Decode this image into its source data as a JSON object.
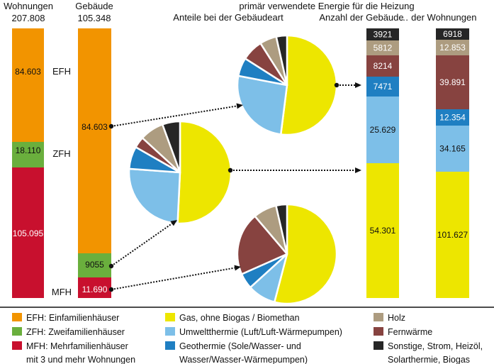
{
  "colors": {
    "EFH": "#F29400",
    "ZFH": "#6AAF3D",
    "MFH": "#C8102E",
    "gas": "#EDE600",
    "umwelt": "#7DBFE8",
    "geo": "#1F7FC2",
    "fern": "#874340",
    "holz": "#AD9C80",
    "sonst": "#262626"
  },
  "headers": {
    "wohnungen": "Wohnungen",
    "wohnungen_total": "207.808",
    "gebaeude": "Gebäude",
    "gebaeude_total": "105.348",
    "energy_title": "primär verwendete Energie für die Heizung",
    "pie_title": "Anteile bei der Gebäudeart",
    "anzahl_gebaeude": "Anzahl der Gebäude",
    "anzahl_wohnungen": "… der Wohnungen"
  },
  "type_labels": {
    "EFH": "EFH",
    "ZFH": "ZFH",
    "MFH": "MFH"
  },
  "chart_data": [
    {
      "type": "bar",
      "title": "Wohnungen 207.808",
      "stacked": true,
      "series": [
        {
          "key": "EFH",
          "label": "84.603",
          "value": 84603
        },
        {
          "key": "ZFH",
          "label": "18.110",
          "value": 18110
        },
        {
          "key": "MFH",
          "label": "105.095",
          "value": 105095
        }
      ]
    },
    {
      "type": "bar",
      "title": "Gebäude 105.348",
      "stacked": true,
      "series": [
        {
          "key": "EFH",
          "label": "84.603",
          "value": 84603
        },
        {
          "key": "ZFH",
          "label": "9055",
          "value": 9055
        },
        {
          "key": "MFH",
          "label": "11.690",
          "value": 11690
        }
      ]
    },
    {
      "type": "pie",
      "title": "Anteile bei der Gebäudeart",
      "pies": [
        {
          "building_type": "EFH",
          "slices": [
            {
              "key": "gas",
              "value": 0.52
            },
            {
              "key": "umwelt",
              "value": 0.26
            },
            {
              "key": "geo",
              "value": 0.06
            },
            {
              "key": "fern",
              "value": 0.07
            },
            {
              "key": "holz",
              "value": 0.055
            },
            {
              "key": "sonst",
              "value": 0.035
            }
          ]
        },
        {
          "building_type": "ZFH",
          "slices": [
            {
              "key": "gas",
              "value": 0.5
            },
            {
              "key": "umwelt",
              "value": 0.25
            },
            {
              "key": "geo",
              "value": 0.07
            },
            {
              "key": "fern",
              "value": 0.035
            },
            {
              "key": "holz",
              "value": 0.075
            },
            {
              "key": "sonst",
              "value": 0.055
            }
          ]
        },
        {
          "building_type": "MFH",
          "slices": [
            {
              "key": "gas",
              "value": 0.53
            },
            {
              "key": "umwelt",
              "value": 0.09
            },
            {
              "key": "geo",
              "value": 0.05
            },
            {
              "key": "fern",
              "value": 0.2
            },
            {
              "key": "holz",
              "value": 0.075
            },
            {
              "key": "sonst",
              "value": 0.035
            }
          ]
        }
      ]
    },
    {
      "type": "bar",
      "title": "Anzahl der Gebäude",
      "stacked": true,
      "series": [
        {
          "key": "sonst",
          "label": "3921",
          "value": 3921
        },
        {
          "key": "holz",
          "label": "5812",
          "value": 5812
        },
        {
          "key": "fern",
          "label": "8214",
          "value": 8214
        },
        {
          "key": "geo",
          "label": "7471",
          "value": 7471
        },
        {
          "key": "umwelt",
          "label": "25.629",
          "value": 25629
        },
        {
          "key": "gas",
          "label": "54.301",
          "value": 54301
        }
      ]
    },
    {
      "type": "bar",
      "title": "… der Wohnungen",
      "stacked": true,
      "series": [
        {
          "key": "sonst",
          "label": "6918",
          "value": 6918
        },
        {
          "key": "holz",
          "label": "12.853",
          "value": 12853
        },
        {
          "key": "fern",
          "label": "39.891",
          "value": 39891
        },
        {
          "key": "geo",
          "label": "12.354",
          "value": 12354
        },
        {
          "key": "umwelt",
          "label": "34.165",
          "value": 34165
        },
        {
          "key": "gas",
          "label": "101.627",
          "value": 101627
        }
      ]
    }
  ],
  "legend": [
    {
      "key": "EFH",
      "lines": [
        "EFH:  Einfamilienhäuser"
      ]
    },
    {
      "key": "ZFH",
      "lines": [
        "ZFH:  Zweifamilienhäuser"
      ]
    },
    {
      "key": "MFH",
      "lines": [
        "MFH: Mehrfamilienhäuser",
        "mit 3 und mehr Wohnungen"
      ]
    },
    {
      "key": "gas",
      "lines": [
        "Gas, ohne Biogas / Biomethan"
      ]
    },
    {
      "key": "umwelt",
      "lines": [
        "Umweltthermie (Luft/Luft-Wärmepumpen)"
      ]
    },
    {
      "key": "geo",
      "lines": [
        "Geothermie (Sole/Wasser- und",
        "Wasser/Wasser-Wärmepumpen)"
      ]
    },
    {
      "key": "holz",
      "lines": [
        "Holz"
      ]
    },
    {
      "key": "fern",
      "lines": [
        "Fernwärme"
      ]
    },
    {
      "key": "sonst",
      "lines": [
        "Sonstige, Strom, Heizöl,",
        "Solarthermie, Biogas"
      ]
    }
  ]
}
